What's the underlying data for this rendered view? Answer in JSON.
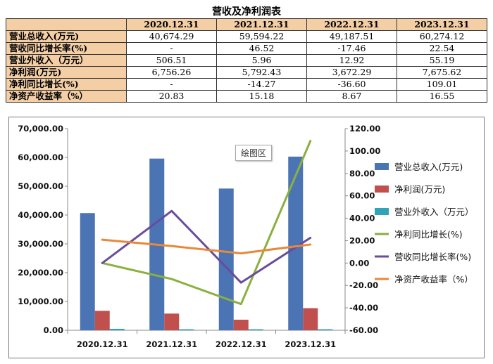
{
  "title": "营收及净利润表",
  "table": {
    "columns": [
      "",
      "2020.12.31",
      "2021.12.31",
      "2022.12.31",
      "2023.12.31"
    ],
    "rows": [
      {
        "label": "营业总收入(万元)",
        "values": [
          "40,674.29",
          "59,594.22",
          "49,187.51",
          "60,274.12"
        ]
      },
      {
        "label": "营收同比增长率(%)",
        "values": [
          "-",
          "46.52",
          "-17.46",
          "22.54"
        ]
      },
      {
        "label": "营业外收入（万元）",
        "values": [
          "506.51",
          "5.96",
          "12.92",
          "55.19"
        ]
      },
      {
        "label": "净利润(万元)",
        "values": [
          "6,756.26",
          "5,792.43",
          "3,672.29",
          "7,675.62"
        ]
      },
      {
        "label": "净利同比增长(%)",
        "values": [
          "-",
          "-14.27",
          "-36.60",
          "109.01"
        ]
      },
      {
        "label": "净资产收益率（%）",
        "values": [
          "20.83",
          "15.18",
          "8.67",
          "16.55"
        ]
      }
    ]
  },
  "tooltip": "绘图区",
  "chart_data": {
    "type": "bar",
    "categories": [
      "2020.12.31",
      "2021.12.31",
      "2022.12.31",
      "2023.12.31"
    ],
    "left_axis": {
      "min": 0,
      "max": 70000,
      "step": 10000,
      "ticks": [
        "0.00",
        "10,000.00",
        "20,000.00",
        "30,000.00",
        "40,000.00",
        "50,000.00",
        "60,000.00",
        "70,000.00"
      ]
    },
    "right_axis": {
      "min": -60,
      "max": 120,
      "step": 20,
      "ticks": [
        "-60.00",
        "-40.00",
        "-20.00",
        "0.00",
        "20.00",
        "40.00",
        "60.00",
        "80.00",
        "100.00",
        "120.00"
      ]
    },
    "bar_series": [
      {
        "name": "营业总收入(万元)",
        "color": "#4a74b4",
        "values": [
          40674.29,
          59594.22,
          49187.51,
          60274.12
        ]
      },
      {
        "name": "净利润(万元)",
        "color": "#c0504d",
        "values": [
          6756.26,
          5792.43,
          3672.29,
          7675.62
        ]
      },
      {
        "name": "营业外收入（万元）",
        "color": "#2ea4b6",
        "values": [
          506.51,
          5.96,
          12.92,
          55.19
        ]
      }
    ],
    "line_series": [
      {
        "name": "净利同比增长(%)",
        "color": "#8ab03f",
        "values": [
          0,
          -14.27,
          -36.6,
          109.01
        ]
      },
      {
        "name": "营收同比增长率(%)",
        "color": "#6a4c9c",
        "values": [
          0,
          46.52,
          -17.46,
          22.54
        ]
      },
      {
        "name": "净资产收益率（%）",
        "color": "#e8883a",
        "values": [
          20.83,
          15.18,
          8.67,
          16.55
        ]
      }
    ],
    "legend_position": "right",
    "grid": true
  }
}
